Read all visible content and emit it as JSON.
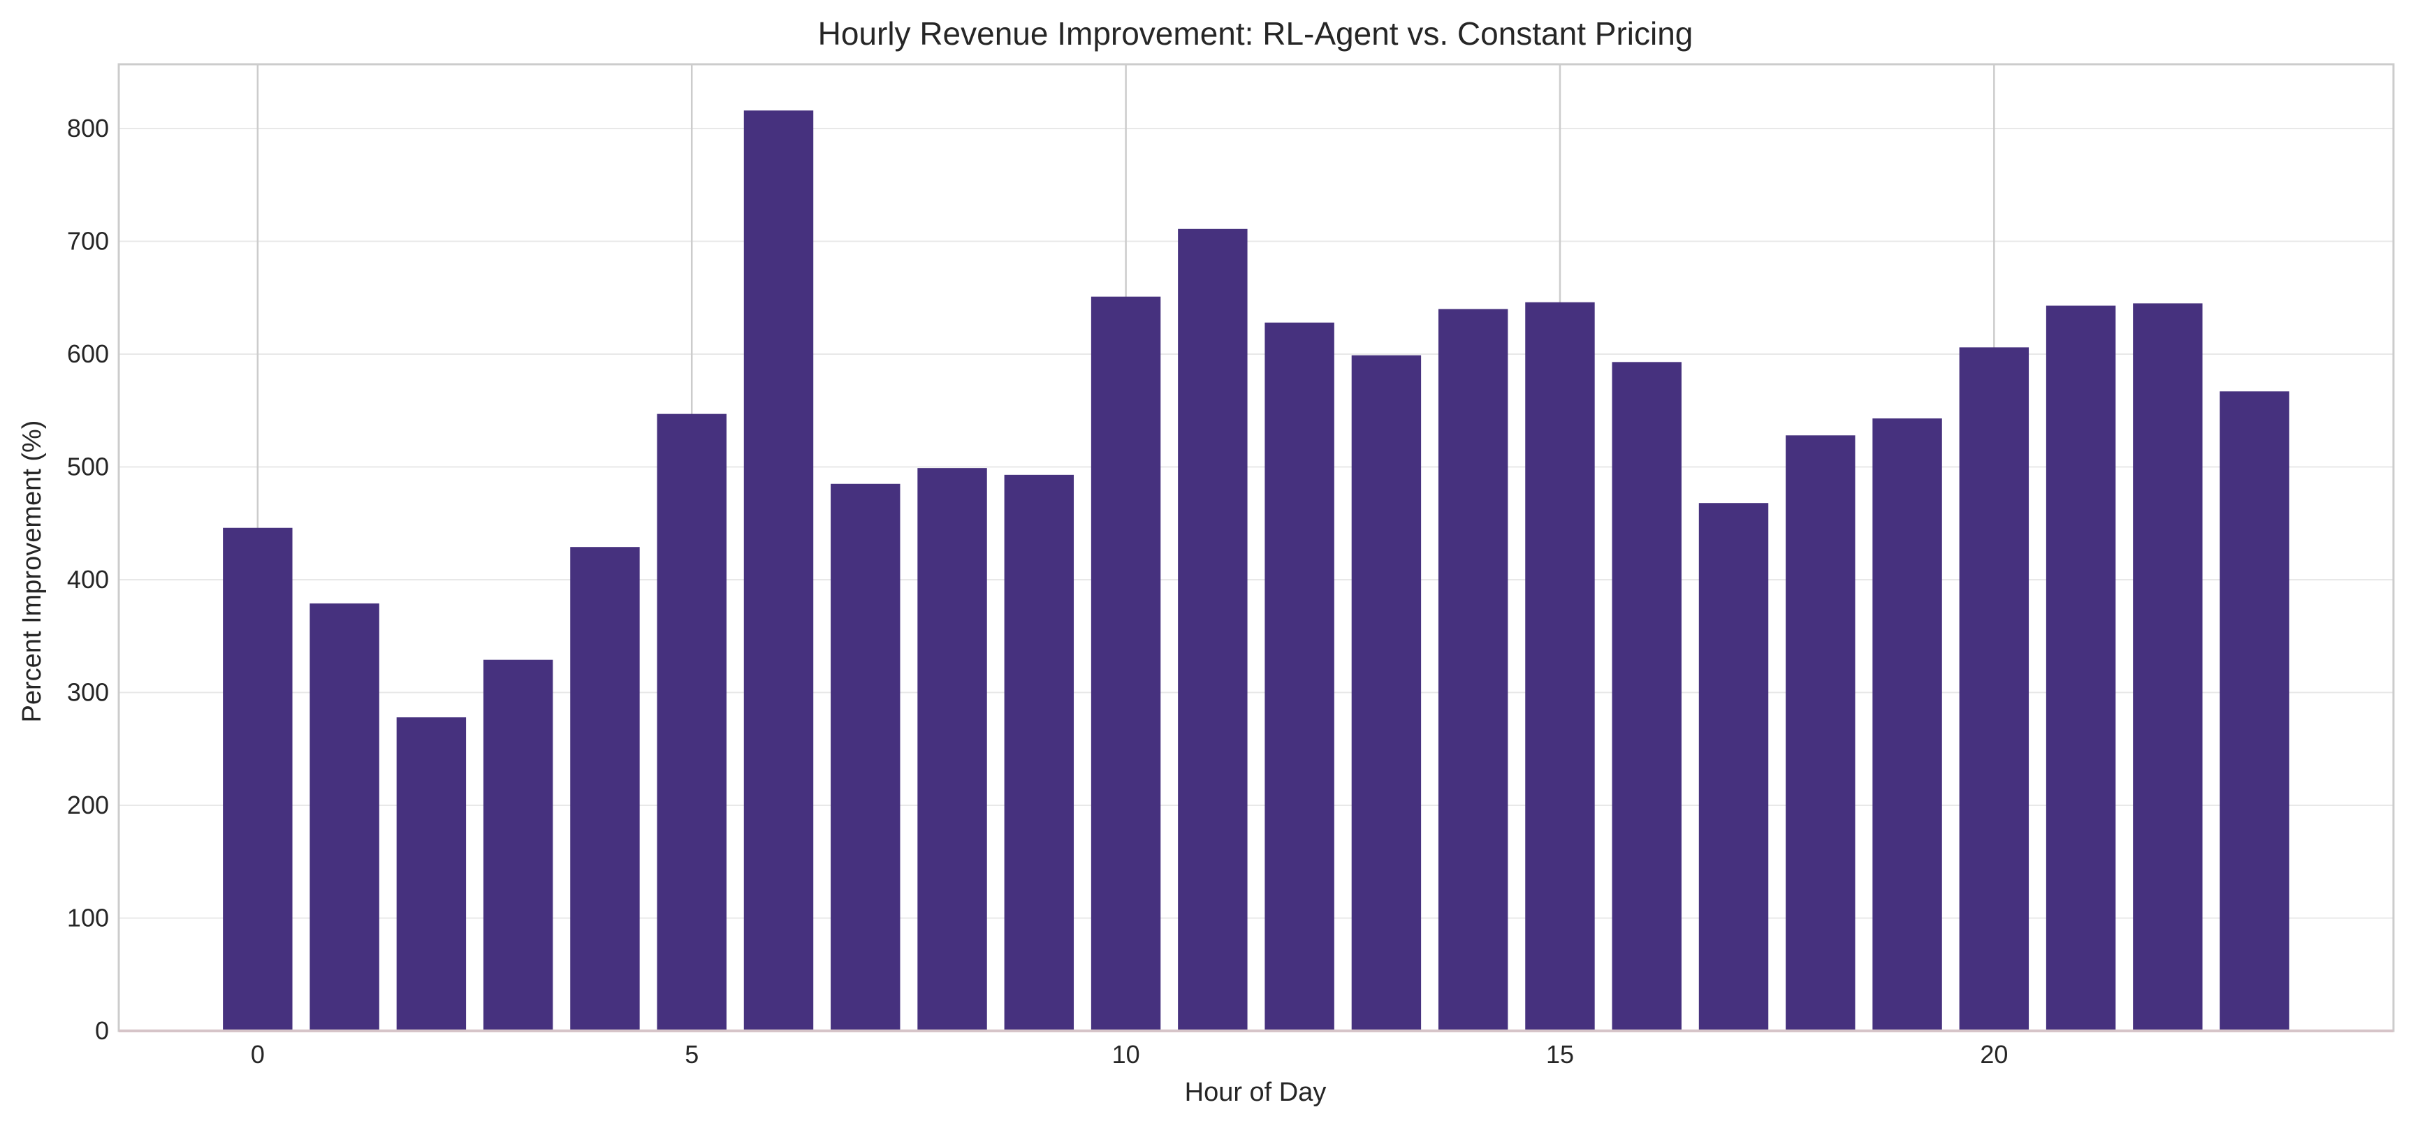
{
  "chart_data": {
    "type": "bar",
    "title": "Hourly Revenue Improvement: RL-Agent vs. Constant Pricing",
    "xlabel": "Hour of Day",
    "ylabel": "Percent Improvement (%)",
    "x": [
      0,
      1,
      2,
      3,
      4,
      5,
      6,
      7,
      8,
      9,
      10,
      11,
      12,
      13,
      14,
      15,
      16,
      17,
      18,
      19,
      20,
      21,
      22,
      23
    ],
    "values": [
      446,
      379,
      278,
      329,
      429,
      547,
      816,
      485,
      499,
      493,
      651,
      711,
      628,
      599,
      640,
      646,
      593,
      468,
      528,
      543,
      606,
      643,
      645,
      567
    ],
    "xticks": [
      0,
      5,
      10,
      15,
      20
    ],
    "yticks": [
      0,
      100,
      200,
      300,
      400,
      500,
      600,
      700,
      800
    ],
    "xlim": [
      -1.6,
      24.6
    ],
    "ylim": [
      0,
      857
    ],
    "grid": true,
    "bar_color": "#46317e",
    "grid_color": "#e8e8e8",
    "frame_color": "#cccccc",
    "baseline_color": "#d6c4c8"
  }
}
